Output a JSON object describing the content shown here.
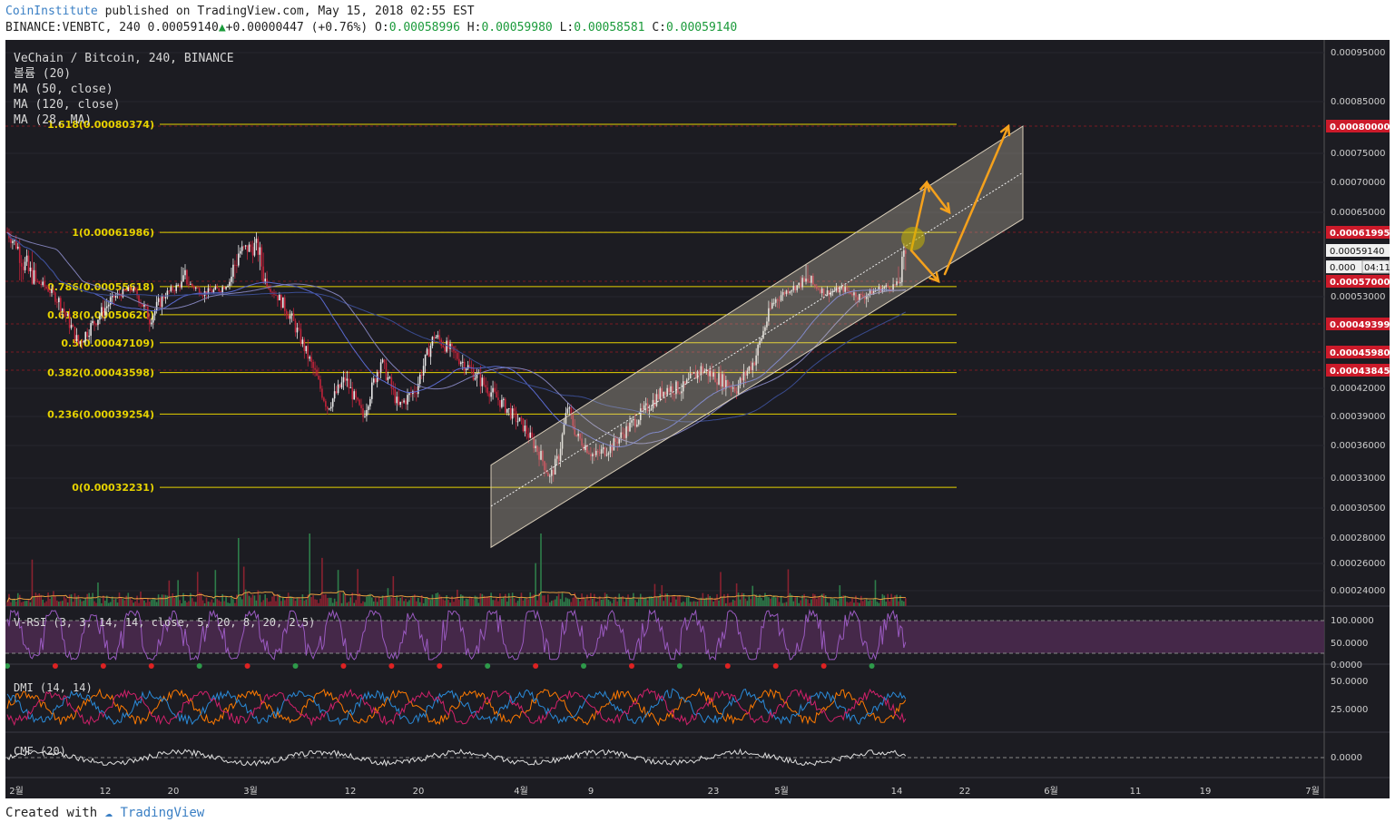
{
  "header": {
    "author": "CoinInstitute",
    "published_text": "published on TradingView.com, May 15, 2018 02:55 EST",
    "symbol": "BINANCE:VENBTC, 240",
    "last": "0.00059140",
    "change_arrow": "▲",
    "change": "+0.00000447 (+0.76%)",
    "o_label": "O:",
    "o_value": "0.00058996",
    "h_label": "H:",
    "h_value": "0.00059980",
    "l_label": "L:",
    "l_value": "0.00058581",
    "c_label": "C:",
    "c_value": "0.00059140"
  },
  "legend": [
    "VeChain / Bitcoin, 240, BINANCE",
    "볼륨 (20)",
    "MA (50, close)",
    "MA (120, close)",
    "MA (28, MA)"
  ],
  "footer": {
    "created_with": "Created with",
    "brand": "TradingView"
  },
  "colors": {
    "background": "#1c1c22",
    "up": "#e8e8e8",
    "down": "#c0233a",
    "fib": "#e6d200",
    "channel": "#d8cdb8",
    "arrow": "#f5a11c",
    "rsi_band": "#4a2a4e"
  },
  "chart_data": {
    "type": "candlestick",
    "symbol": "VeChain / Bitcoin",
    "timeframe": "240",
    "exchange": "BINANCE",
    "x_ticks": [
      "2월",
      "12",
      "20",
      "3월",
      "12",
      "20",
      "4월",
      "9",
      "23",
      "5월",
      "14",
      "22",
      "6월",
      "11",
      "19",
      "7월"
    ],
    "y_ticks": [
      "0.00095000",
      "0.00085000",
      "0.00075000",
      "0.00070000",
      "0.00065000",
      "0.00053000",
      "0.00042000",
      "0.00039000",
      "0.00036000",
      "0.00033000",
      "0.00030500",
      "0.00028000",
      "0.00026000",
      "0.00024000"
    ],
    "y_tick_values": [
      0.00095,
      0.00085,
      0.00075,
      0.0007,
      0.00065,
      0.00053,
      0.00042,
      0.00039,
      0.00036,
      0.00033,
      0.000305,
      0.00028,
      0.00026,
      0.00024
    ],
    "price_labels": [
      {
        "text": "0.00080000",
        "value": 0.0008,
        "style": "red"
      },
      {
        "text": "0.00061995",
        "value": 0.00061995,
        "style": "red"
      },
      {
        "text": "0.00059140",
        "value": 0.0005914,
        "style": "white"
      },
      {
        "text": "0.000",
        "value": 0.00058,
        "style": "white",
        "extra": "04:11"
      },
      {
        "text": "0.00057000",
        "value": 0.00057,
        "style": "red"
      },
      {
        "text": "0.00049399",
        "value": 0.00049399,
        "style": "red"
      },
      {
        "text": "0.00045980",
        "value": 0.0004598,
        "style": "red"
      },
      {
        "text": "0.00043845",
        "value": 0.00043845,
        "style": "red"
      }
    ],
    "fib_levels": [
      {
        "label": "1.618(0.00080374)",
        "value": 0.00080374
      },
      {
        "label": "1(0.00061986)",
        "value": 0.00061986
      },
      {
        "label": "0.786(0.00055618)",
        "value": 0.00055618
      },
      {
        "label": "0.618(0.00050620)",
        "value": 0.0005062
      },
      {
        "label": "0.5(0.00047109)",
        "value": 0.00047109
      },
      {
        "label": "0.382(0.00043598)",
        "value": 0.00043598
      },
      {
        "label": "0.236(0.00039254)",
        "value": 0.00039254
      },
      {
        "label": "0(0.00032231)",
        "value": 0.00032231
      }
    ],
    "series": [
      {
        "name": "VeChain / Bitcoin, 240, BINANCE",
        "type": "candlestick",
        "path": [
          [
            0,
            0.00062
          ],
          [
            10,
            0.00058
          ],
          [
            20,
            0.00056
          ],
          [
            30,
            0.00052
          ],
          [
            40,
            0.00047
          ],
          [
            50,
            0.0005
          ],
          [
            60,
            0.00053
          ],
          [
            70,
            0.00055
          ],
          [
            80,
            0.0005
          ],
          [
            90,
            0.00054
          ],
          [
            100,
            0.00057
          ],
          [
            110,
            0.00054
          ],
          [
            120,
            0.00055
          ],
          [
            130,
            0.00059
          ],
          [
            140,
            0.0006
          ],
          [
            150,
            0.00054
          ],
          [
            160,
            0.0005
          ],
          [
            170,
            0.00045
          ],
          [
            180,
            0.0004
          ],
          [
            190,
            0.00043
          ],
          [
            200,
            0.00039
          ],
          [
            210,
            0.00045
          ],
          [
            220,
            0.0004
          ],
          [
            230,
            0.00042
          ],
          [
            240,
            0.00048
          ],
          [
            250,
            0.00046
          ],
          [
            260,
            0.00044
          ],
          [
            270,
            0.00042
          ],
          [
            280,
            0.0004
          ],
          [
            290,
            0.00038
          ],
          [
            300,
            0.00035
          ],
          [
            305,
            0.00033
          ],
          [
            310,
            0.00035
          ],
          [
            315,
            0.0004
          ],
          [
            320,
            0.00037
          ],
          [
            330,
            0.00035
          ],
          [
            340,
            0.00036
          ],
          [
            350,
            0.00038
          ],
          [
            360,
            0.0004
          ],
          [
            370,
            0.00042
          ],
          [
            380,
            0.00042
          ],
          [
            390,
            0.00044
          ],
          [
            400,
            0.00043
          ],
          [
            410,
            0.00042
          ],
          [
            420,
            0.00045
          ],
          [
            430,
            0.00052
          ],
          [
            440,
            0.00055
          ],
          [
            450,
            0.00057
          ],
          [
            460,
            0.00054
          ],
          [
            470,
            0.00055
          ],
          [
            480,
            0.00053
          ],
          [
            490,
            0.00055
          ],
          [
            500,
            0.00056
          ],
          [
            505,
            0.00059
          ]
        ]
      },
      {
        "name": "MA (50, close)",
        "type": "line"
      },
      {
        "name": "MA (120, close)",
        "type": "line"
      },
      {
        "name": "MA (28, MA)",
        "type": "line"
      },
      {
        "name": "볼륨 (20)",
        "type": "bar"
      }
    ],
    "channel": {
      "lower_start": 0.0002727,
      "lower_end": 0.00064,
      "upper_start": 0.000342,
      "upper_end": 0.0008
    },
    "panes": [
      {
        "title": "V-RSI (3, 3, 14, 14, close, 5, 20, 8, 20, 2.5)",
        "y_ticks": [
          "100.0000",
          "50.0000",
          "0.0000"
        ],
        "y_tick_values": [
          100,
          50,
          0
        ]
      },
      {
        "title": "DMI (14, 14)",
        "y_ticks": [
          "50.0000",
          "25.0000"
        ],
        "y_tick_values": [
          50,
          25
        ]
      },
      {
        "title": "CMF (20)",
        "y_ticks": [
          "0.0000"
        ],
        "y_tick_values": [
          0
        ]
      }
    ]
  }
}
